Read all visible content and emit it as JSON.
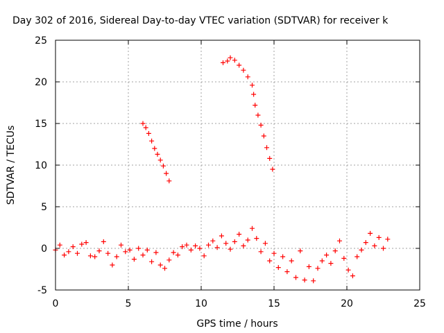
{
  "chart_data": {
    "type": "scatter",
    "title": "Day 302 of 2016, Sidereal Day-to-day VTEC variation (SDTVAR) for receiver k",
    "xlabel": "GPS time / hours",
    "ylabel": "SDTVAR / TECUs",
    "xlim": [
      0,
      25
    ],
    "ylim": [
      -5,
      25
    ],
    "xticks": [
      "0",
      "5",
      "10",
      "15",
      "20",
      "25"
    ],
    "yticks": [
      "-5",
      "0",
      "5",
      "10",
      "15",
      "20",
      "25"
    ],
    "grid": true,
    "marker": "+",
    "color": "#ff0000",
    "series": [
      {
        "values": [
          {
            "x": 6.0,
            "y": 15.0
          },
          {
            "x": 6.2,
            "y": 14.5
          },
          {
            "x": 6.4,
            "y": 13.8
          },
          {
            "x": 6.6,
            "y": 12.9
          },
          {
            "x": 6.8,
            "y": 12.0
          },
          {
            "x": 7.0,
            "y": 11.3
          },
          {
            "x": 7.2,
            "y": 10.6
          },
          {
            "x": 7.4,
            "y": 9.9
          },
          {
            "x": 7.6,
            "y": 9.0
          },
          {
            "x": 7.8,
            "y": 8.1
          },
          {
            "x": 11.5,
            "y": 22.3
          },
          {
            "x": 11.8,
            "y": 22.5
          },
          {
            "x": 12.0,
            "y": 22.9
          },
          {
            "x": 12.3,
            "y": 22.6
          },
          {
            "x": 12.6,
            "y": 22.0
          },
          {
            "x": 12.9,
            "y": 21.4
          },
          {
            "x": 13.2,
            "y": 20.6
          },
          {
            "x": 13.5,
            "y": 19.6
          },
          {
            "x": 13.6,
            "y": 18.5
          },
          {
            "x": 13.7,
            "y": 17.2
          },
          {
            "x": 13.9,
            "y": 16.0
          },
          {
            "x": 14.1,
            "y": 14.8
          },
          {
            "x": 14.3,
            "y": 13.5
          },
          {
            "x": 14.5,
            "y": 12.1
          },
          {
            "x": 14.7,
            "y": 10.8
          },
          {
            "x": 14.9,
            "y": 9.5
          },
          {
            "x": 0.0,
            "y": -0.2
          },
          {
            "x": 0.3,
            "y": 0.4
          },
          {
            "x": 0.6,
            "y": -0.8
          },
          {
            "x": 0.9,
            "y": -0.4
          },
          {
            "x": 1.2,
            "y": 0.2
          },
          {
            "x": 1.5,
            "y": -0.6
          },
          {
            "x": 1.8,
            "y": 0.5
          },
          {
            "x": 2.1,
            "y": 0.7
          },
          {
            "x": 2.4,
            "y": -0.9
          },
          {
            "x": 2.7,
            "y": -1.0
          },
          {
            "x": 3.0,
            "y": -0.3
          },
          {
            "x": 3.3,
            "y": 0.8
          },
          {
            "x": 3.6,
            "y": -0.6
          },
          {
            "x": 3.9,
            "y": -2.0
          },
          {
            "x": 4.2,
            "y": -1.0
          },
          {
            "x": 4.5,
            "y": 0.4
          },
          {
            "x": 4.8,
            "y": -0.4
          },
          {
            "x": 5.1,
            "y": -0.2
          },
          {
            "x": 5.4,
            "y": -1.3
          },
          {
            "x": 5.7,
            "y": 0.0
          },
          {
            "x": 6.0,
            "y": -0.8
          },
          {
            "x": 6.3,
            "y": -0.2
          },
          {
            "x": 6.6,
            "y": -1.6
          },
          {
            "x": 6.9,
            "y": -0.5
          },
          {
            "x": 7.2,
            "y": -2.0
          },
          {
            "x": 7.5,
            "y": -2.4
          },
          {
            "x": 7.8,
            "y": -1.4
          },
          {
            "x": 8.1,
            "y": -0.5
          },
          {
            "x": 8.4,
            "y": -0.8
          },
          {
            "x": 8.7,
            "y": 0.2
          },
          {
            "x": 9.0,
            "y": 0.4
          },
          {
            "x": 9.3,
            "y": -0.2
          },
          {
            "x": 9.6,
            "y": 0.3
          },
          {
            "x": 9.9,
            "y": 0.0
          },
          {
            "x": 10.2,
            "y": -0.9
          },
          {
            "x": 10.5,
            "y": 0.4
          },
          {
            "x": 10.8,
            "y": 0.9
          },
          {
            "x": 11.1,
            "y": 0.1
          },
          {
            "x": 11.4,
            "y": 1.5
          },
          {
            "x": 11.7,
            "y": 0.6
          },
          {
            "x": 12.0,
            "y": -0.1
          },
          {
            "x": 12.3,
            "y": 0.8
          },
          {
            "x": 12.6,
            "y": 1.7
          },
          {
            "x": 12.9,
            "y": 0.3
          },
          {
            "x": 13.2,
            "y": 1.0
          },
          {
            "x": 13.5,
            "y": 2.4
          },
          {
            "x": 13.8,
            "y": 1.2
          },
          {
            "x": 14.1,
            "y": -0.4
          },
          {
            "x": 14.4,
            "y": 0.6
          },
          {
            "x": 14.7,
            "y": -1.5
          },
          {
            "x": 15.0,
            "y": -0.6
          },
          {
            "x": 15.3,
            "y": -2.3
          },
          {
            "x": 15.6,
            "y": -1.0
          },
          {
            "x": 15.9,
            "y": -2.8
          },
          {
            "x": 16.2,
            "y": -1.5
          },
          {
            "x": 16.5,
            "y": -3.5
          },
          {
            "x": 16.8,
            "y": -0.3
          },
          {
            "x": 17.1,
            "y": -3.8
          },
          {
            "x": 17.4,
            "y": -2.2
          },
          {
            "x": 17.7,
            "y": -3.9
          },
          {
            "x": 18.0,
            "y": -2.4
          },
          {
            "x": 18.3,
            "y": -1.5
          },
          {
            "x": 18.6,
            "y": -0.8
          },
          {
            "x": 18.9,
            "y": -1.8
          },
          {
            "x": 19.2,
            "y": -0.3
          },
          {
            "x": 19.5,
            "y": 0.9
          },
          {
            "x": 19.8,
            "y": -1.2
          },
          {
            "x": 20.1,
            "y": -2.6
          },
          {
            "x": 20.4,
            "y": -3.3
          },
          {
            "x": 20.7,
            "y": -1.0
          },
          {
            "x": 21.0,
            "y": -0.2
          },
          {
            "x": 21.3,
            "y": 0.7
          },
          {
            "x": 21.6,
            "y": 1.8
          },
          {
            "x": 21.9,
            "y": 0.3
          },
          {
            "x": 22.2,
            "y": 1.3
          },
          {
            "x": 22.5,
            "y": 0.0
          },
          {
            "x": 22.8,
            "y": 1.1
          }
        ]
      }
    ]
  }
}
